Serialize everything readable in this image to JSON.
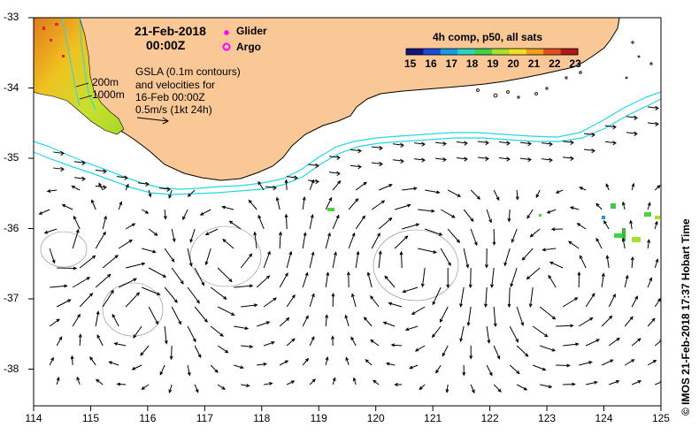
{
  "title": {
    "date": "21-Feb-2018",
    "time": "00:00Z"
  },
  "legend": {
    "glider": "Glider",
    "argo": "Argo",
    "glider_color": "#ff00ff",
    "argo_color": "#ff00ff"
  },
  "colorbar": {
    "title": "4h comp, p50, all sats",
    "ticks": [
      "15",
      "16",
      "17",
      "18",
      "19",
      "20",
      "21",
      "22",
      "23"
    ],
    "colors": [
      "#14147a",
      "#1a4ad8",
      "#1a9ae0",
      "#2ed0c0",
      "#40d050",
      "#a8e030",
      "#f0e020",
      "#f0a020",
      "#e05020",
      "#b01818"
    ]
  },
  "annotations": {
    "gsla_lines": [
      "GSLA (0.1m contours)",
      "and velocities for",
      "16-Feb 00:00Z",
      "0.5m/s (1kt 24h)"
    ],
    "depth_200": "200m",
    "depth_1000": "1000m"
  },
  "axes": {
    "x_ticks": [
      "114",
      "115",
      "116",
      "117",
      "118",
      "119",
      "120",
      "121",
      "122",
      "123",
      "124",
      "125"
    ],
    "y_ticks": [
      "-33",
      "-34",
      "-35",
      "-36",
      "-37",
      "-38"
    ]
  },
  "credit": "© IMOS 21-Feb-2018 17:37 Hobart Time",
  "colors": {
    "land": "#fac796",
    "isobath": "#22d8e6",
    "vector": "#000000"
  }
}
